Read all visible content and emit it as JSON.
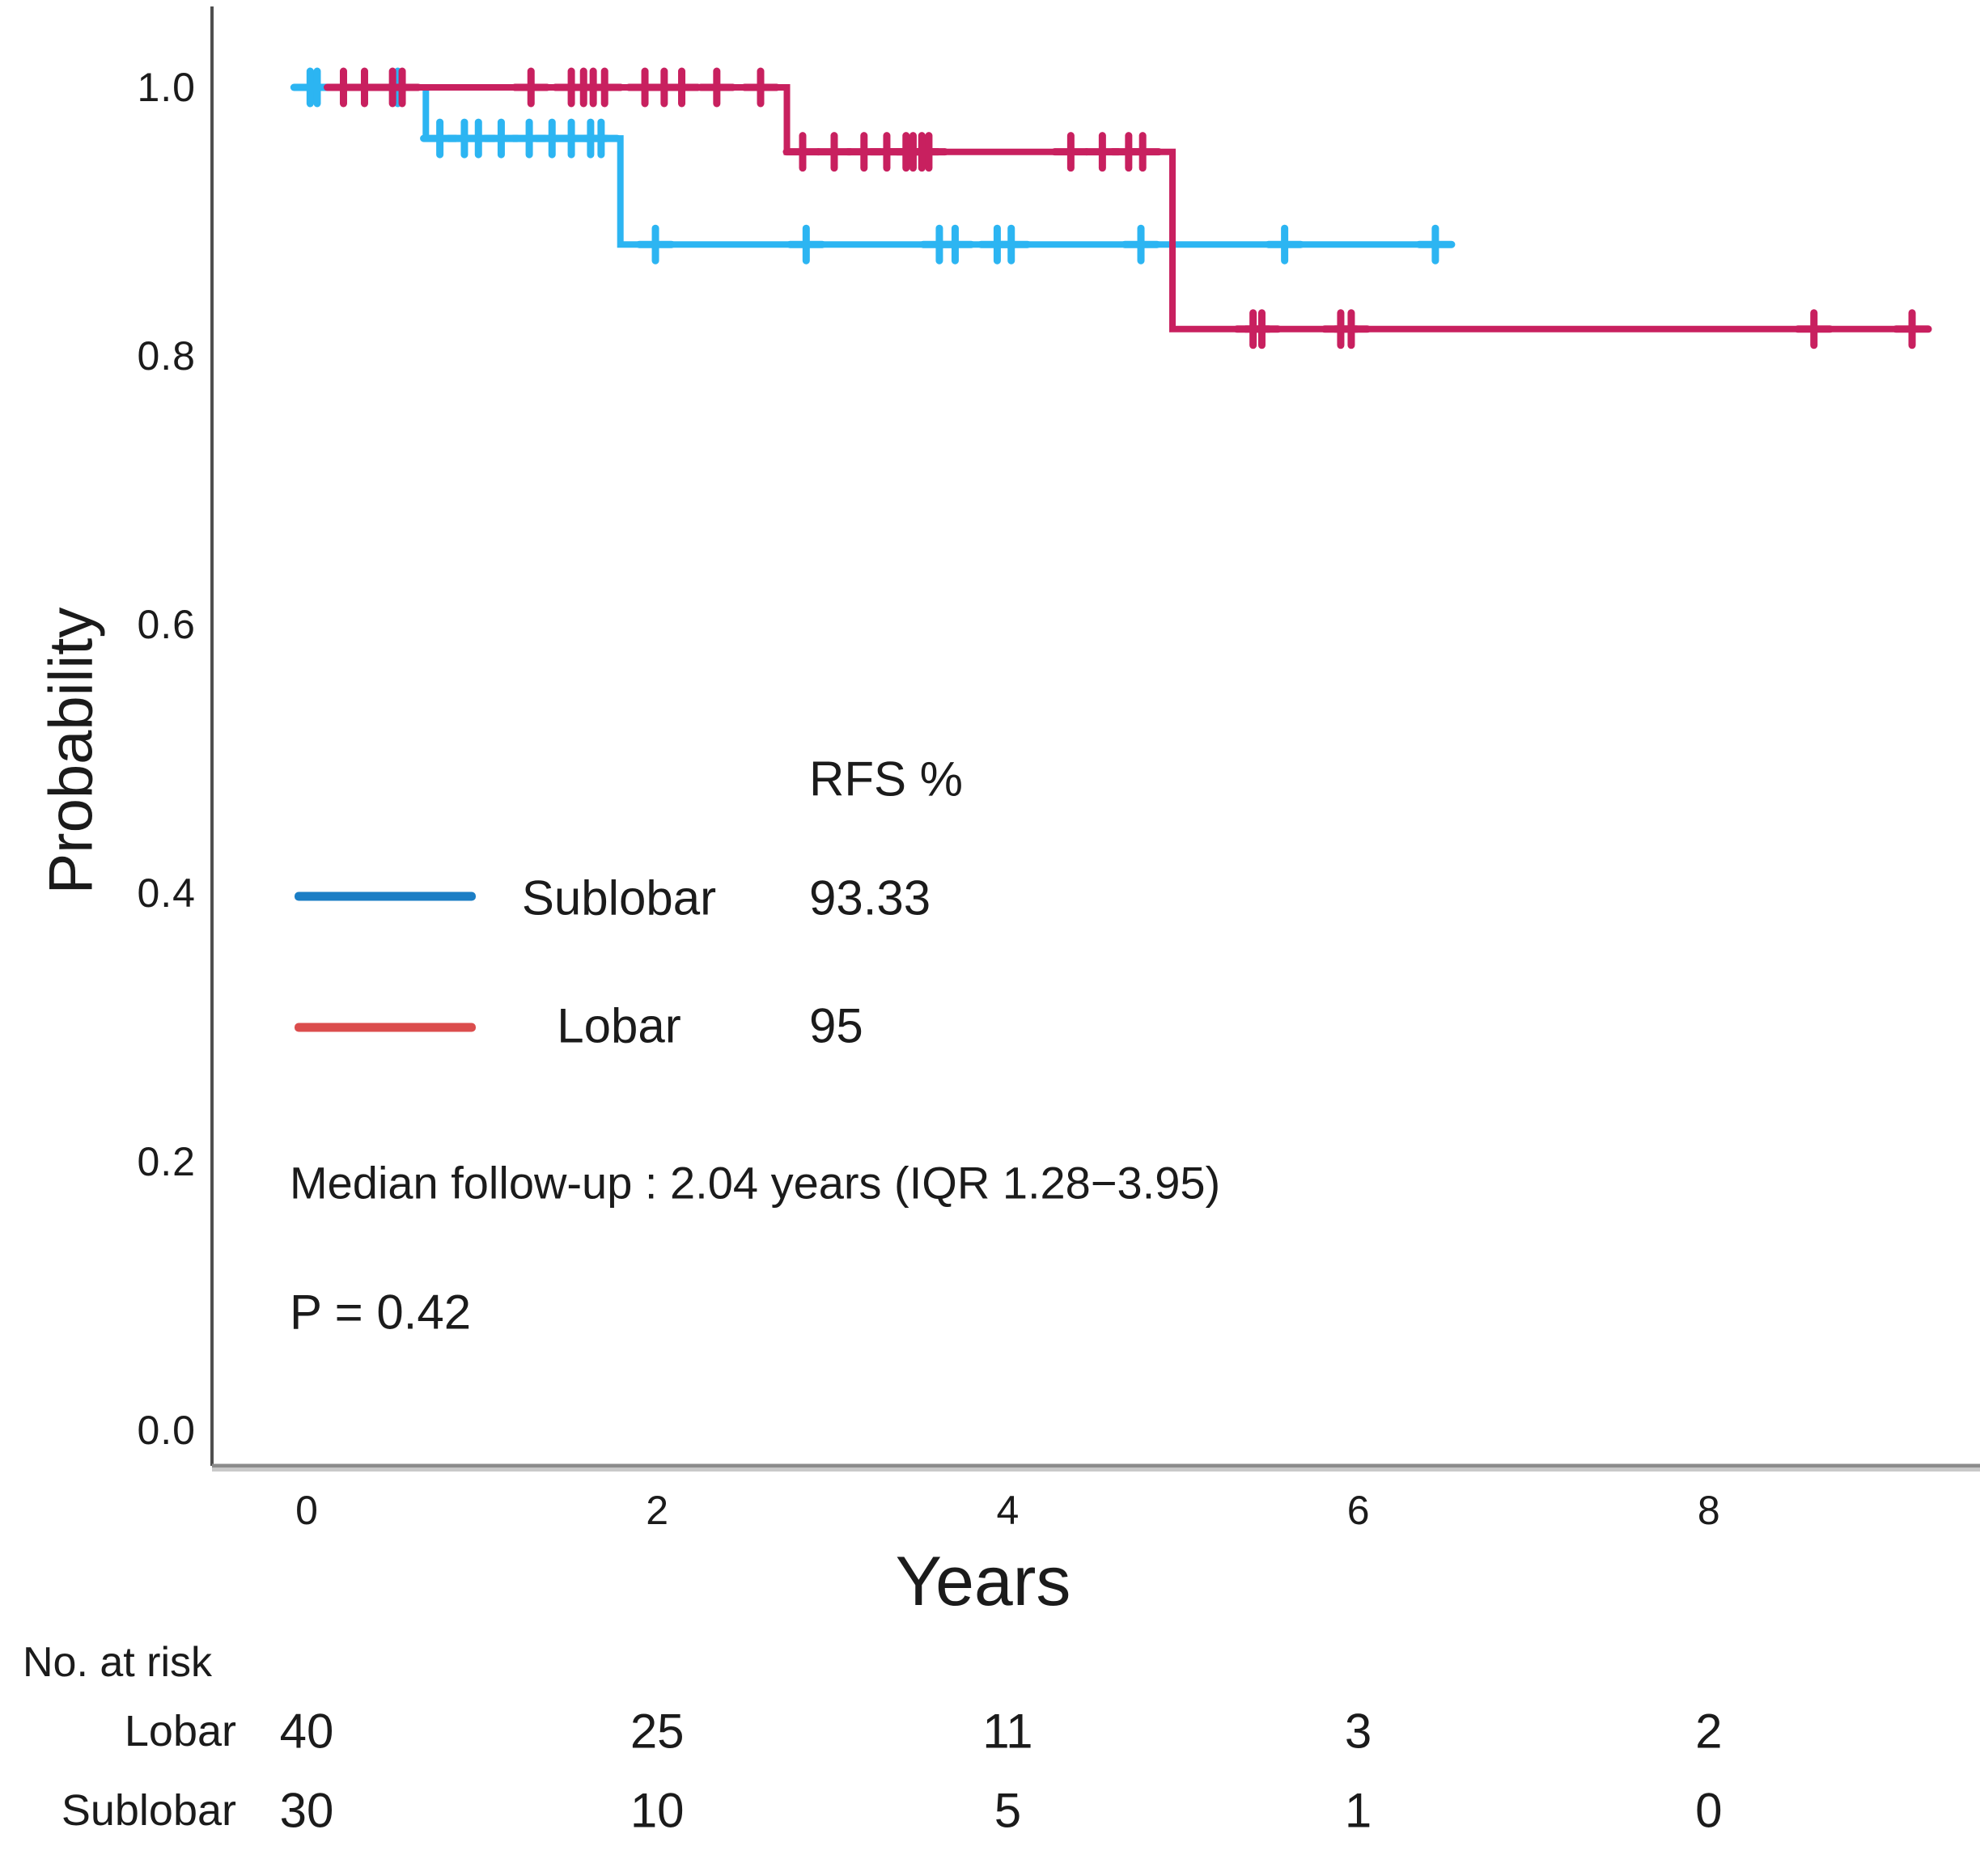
{
  "chart_data": {
    "type": "line",
    "subtype": "kaplan_meier_step",
    "title": "",
    "xlabel": "Years",
    "ylabel": "Probability",
    "xticks": [
      0,
      2,
      4,
      6,
      8
    ],
    "ytick_labels": [
      "1.0",
      "0.8",
      "0.6",
      "0.4",
      "0.2",
      "0.0"
    ],
    "xlim": [
      -0.54,
      9.55
    ],
    "ylim": [
      0.0,
      1.06
    ],
    "grid": false,
    "legend_position": "inside-center-left",
    "series": [
      {
        "name": "Sublobar",
        "color": "#2CB5F2",
        "rfs_percent": "93.33",
        "step_points": [
          [
            0,
            1.0
          ],
          [
            0.68,
            1.0
          ],
          [
            0.68,
            0.962
          ],
          [
            1.79,
            0.962
          ],
          [
            1.79,
            0.883
          ],
          [
            6.47,
            0.883
          ]
        ],
        "censor_marks": [
          [
            0.02,
            1.0
          ],
          [
            0.06,
            1.0
          ],
          [
            0.52,
            1.0
          ],
          [
            0.76,
            0.962
          ],
          [
            0.9,
            0.962
          ],
          [
            0.98,
            0.962
          ],
          [
            1.11,
            0.962
          ],
          [
            1.27,
            0.962
          ],
          [
            1.4,
            0.962
          ],
          [
            1.51,
            0.962
          ],
          [
            1.62,
            0.962
          ],
          [
            1.68,
            0.962
          ],
          [
            1.99,
            0.883
          ],
          [
            2.85,
            0.883
          ],
          [
            3.61,
            0.883
          ],
          [
            3.7,
            0.883
          ],
          [
            3.94,
            0.883
          ],
          [
            4.02,
            0.883
          ],
          [
            4.76,
            0.883
          ],
          [
            5.58,
            0.883
          ],
          [
            6.44,
            0.883
          ]
        ]
      },
      {
        "name": "Lobar",
        "color": "#C8205F",
        "rfs_percent": "95",
        "step_points": [
          [
            0,
            1.0
          ],
          [
            2.74,
            1.0
          ],
          [
            2.74,
            0.952
          ],
          [
            4.94,
            0.952
          ],
          [
            4.94,
            0.82
          ],
          [
            9.23,
            0.82
          ]
        ],
        "censor_marks": [
          [
            0.21,
            1.0
          ],
          [
            0.33,
            1.0
          ],
          [
            0.49,
            1.0
          ],
          [
            0.545,
            1.0
          ],
          [
            1.28,
            1.0
          ],
          [
            1.51,
            1.0
          ],
          [
            1.58,
            1.0
          ],
          [
            1.635,
            1.0
          ],
          [
            1.7,
            1.0
          ],
          [
            1.93,
            1.0
          ],
          [
            2.04,
            1.0
          ],
          [
            2.14,
            1.0
          ],
          [
            2.34,
            1.0
          ],
          [
            2.59,
            1.0
          ],
          [
            2.83,
            0.952
          ],
          [
            3.01,
            0.952
          ],
          [
            3.18,
            0.952
          ],
          [
            3.31,
            0.952
          ],
          [
            3.42,
            0.952
          ],
          [
            3.46,
            0.952
          ],
          [
            3.51,
            0.952
          ],
          [
            3.55,
            0.952
          ],
          [
            4.36,
            0.952
          ],
          [
            4.54,
            0.952
          ],
          [
            4.69,
            0.952
          ],
          [
            4.77,
            0.952
          ],
          [
            5.4,
            0.82
          ],
          [
            5.45,
            0.82
          ],
          [
            5.9,
            0.82
          ],
          [
            5.96,
            0.82
          ],
          [
            8.6,
            0.82
          ],
          [
            9.16,
            0.82
          ]
        ]
      }
    ]
  },
  "axis": {
    "x_title": "Years",
    "y_title": "Probability"
  },
  "legend": {
    "value_header": "RFS %",
    "items": [
      {
        "label": "Sublobar",
        "value": "93.33",
        "swatch_color": "#1B7EC5"
      },
      {
        "label": "Lobar",
        "value": "95",
        "swatch_color": "#DB4D4D"
      }
    ]
  },
  "annotations": {
    "median_followup": "Median follow-up : 2.04 years (IQR 1.28−3.95)",
    "p_value": "P = 0.42"
  },
  "risk_table": {
    "title": "No. at risk",
    "time_points": [
      0,
      2,
      4,
      6,
      8
    ],
    "rows": [
      {
        "label": "Lobar",
        "values": [
          "40",
          "25",
          "11",
          "3",
          "2"
        ]
      },
      {
        "label": "Sublobar",
        "values": [
          "30",
          "10",
          "5",
          "1",
          "0"
        ]
      }
    ]
  }
}
